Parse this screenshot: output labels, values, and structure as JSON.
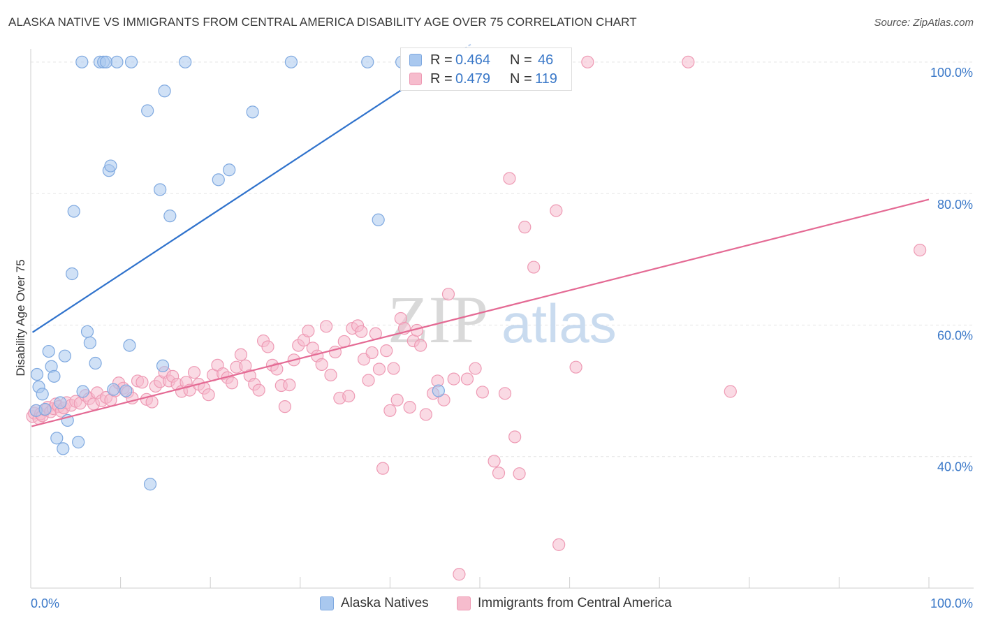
{
  "title": "ALASKA NATIVE VS IMMIGRANTS FROM CENTRAL AMERICA DISABILITY AGE OVER 75 CORRELATION CHART",
  "source": "Source: ZipAtlas.com",
  "watermark": {
    "zip": "ZIP",
    "atlas": "atlas"
  },
  "colors": {
    "blue_fill": "#a9c8ef",
    "blue_stroke": "#7fa9e0",
    "blue_line": "#2f72cc",
    "pink_fill": "#f6bccd",
    "pink_stroke": "#ee9ab4",
    "pink_line": "#e46a94",
    "tick_text": "#3a78c8",
    "grid": "#e3e3e3"
  },
  "stats": [
    {
      "r_label": "R =",
      "r_value": "0.464",
      "n_label": "N =",
      "n_value": "46"
    },
    {
      "r_label": "R =",
      "r_value": "0.479",
      "n_label": "N =",
      "n_value": "119"
    }
  ],
  "chart_data": {
    "type": "scatter",
    "title": "ALASKA NATIVE VS IMMIGRANTS FROM CENTRAL AMERICA DISABILITY AGE OVER 75 CORRELATION CHART",
    "xlabel": "",
    "ylabel": "Disability Age Over 75",
    "xlim": [
      0,
      100
    ],
    "ylim": [
      20,
      102
    ],
    "x_tick_labels": [
      "0.0%",
      "100.0%"
    ],
    "y_ticks": [
      40,
      60,
      80,
      100
    ],
    "y_tick_labels": [
      "40.0%",
      "60.0%",
      "80.0%",
      "100.0%"
    ],
    "grid": true,
    "legend": "bottom-center",
    "series": [
      {
        "name": "Alaska Natives",
        "color": "blue",
        "trend": {
          "x1": 0.2,
          "y1": 58.9,
          "x2": 46,
          "y2": 100
        },
        "points": [
          [
            0.6,
            47.0
          ],
          [
            0.7,
            52.5
          ],
          [
            0.9,
            50.6
          ],
          [
            1.3,
            49.5
          ],
          [
            1.6,
            47.2
          ],
          [
            2.0,
            56.0
          ],
          [
            2.3,
            53.7
          ],
          [
            2.6,
            52.2
          ],
          [
            2.9,
            42.8
          ],
          [
            3.3,
            48.2
          ],
          [
            3.6,
            41.2
          ],
          [
            3.8,
            55.3
          ],
          [
            4.1,
            45.5
          ],
          [
            4.6,
            67.8
          ],
          [
            4.8,
            77.3
          ],
          [
            5.3,
            42.2
          ],
          [
            5.7,
            100
          ],
          [
            5.8,
            49.9
          ],
          [
            6.3,
            59.0
          ],
          [
            6.6,
            57.3
          ],
          [
            7.2,
            54.2
          ],
          [
            7.7,
            100
          ],
          [
            8.1,
            100
          ],
          [
            8.4,
            100
          ],
          [
            8.7,
            83.5
          ],
          [
            8.9,
            84.2
          ],
          [
            9.2,
            50.2
          ],
          [
            9.6,
            100
          ],
          [
            10.6,
            50.0
          ],
          [
            11.0,
            56.9
          ],
          [
            11.2,
            100
          ],
          [
            13.0,
            92.6
          ],
          [
            13.3,
            35.8
          ],
          [
            14.4,
            80.6
          ],
          [
            14.7,
            53.8
          ],
          [
            14.9,
            95.6
          ],
          [
            15.5,
            76.6
          ],
          [
            17.2,
            100
          ],
          [
            20.9,
            82.1
          ],
          [
            22.1,
            83.6
          ],
          [
            24.7,
            92.4
          ],
          [
            29.0,
            100
          ],
          [
            37.5,
            100
          ],
          [
            38.7,
            76.0
          ],
          [
            41.3,
            100
          ],
          [
            45.4,
            50.0
          ]
        ]
      },
      {
        "name": "Immigrants from Central America",
        "color": "pink",
        "trend": {
          "x1": 0.1,
          "y1": 44.6,
          "x2": 100,
          "y2": 79.1
        },
        "points": [
          [
            0.2,
            46.1
          ],
          [
            0.4,
            46.6
          ],
          [
            0.6,
            47.0
          ],
          [
            0.9,
            45.8
          ],
          [
            1.1,
            46.5
          ],
          [
            1.3,
            46.2
          ],
          [
            1.6,
            47.1
          ],
          [
            1.9,
            47.5
          ],
          [
            2.2,
            46.8
          ],
          [
            2.5,
            47.3
          ],
          [
            2.8,
            48.0
          ],
          [
            3.1,
            47.6
          ],
          [
            3.4,
            46.9
          ],
          [
            3.7,
            47.4
          ],
          [
            4.0,
            48.2
          ],
          [
            4.5,
            47.8
          ],
          [
            5.0,
            48.4
          ],
          [
            5.5,
            48.1
          ],
          [
            6.1,
            49.3
          ],
          [
            6.5,
            48.8
          ],
          [
            7.0,
            48.0
          ],
          [
            7.4,
            49.7
          ],
          [
            7.9,
            48.5
          ],
          [
            8.4,
            49.0
          ],
          [
            8.9,
            48.6
          ],
          [
            9.4,
            50.0
          ],
          [
            9.8,
            51.2
          ],
          [
            10.3,
            50.4
          ],
          [
            10.8,
            49.8
          ],
          [
            11.3,
            48.9
          ],
          [
            11.9,
            51.5
          ],
          [
            12.4,
            51.3
          ],
          [
            12.9,
            48.7
          ],
          [
            13.5,
            48.3
          ],
          [
            13.9,
            50.7
          ],
          [
            14.4,
            51.4
          ],
          [
            14.9,
            52.8
          ],
          [
            15.4,
            51.5
          ],
          [
            15.8,
            52.2
          ],
          [
            16.3,
            51.0
          ],
          [
            16.8,
            49.9
          ],
          [
            17.3,
            51.3
          ],
          [
            17.7,
            50.1
          ],
          [
            18.2,
            52.8
          ],
          [
            18.7,
            51.0
          ],
          [
            19.3,
            50.4
          ],
          [
            19.8,
            49.4
          ],
          [
            20.3,
            52.4
          ],
          [
            20.8,
            53.9
          ],
          [
            21.4,
            52.6
          ],
          [
            21.9,
            52.0
          ],
          [
            22.4,
            51.2
          ],
          [
            22.9,
            53.6
          ],
          [
            23.4,
            55.5
          ],
          [
            23.9,
            53.8
          ],
          [
            24.4,
            52.3
          ],
          [
            24.9,
            51.0
          ],
          [
            25.4,
            50.1
          ],
          [
            25.9,
            57.6
          ],
          [
            26.4,
            56.7
          ],
          [
            26.9,
            53.9
          ],
          [
            27.4,
            53.3
          ],
          [
            27.9,
            50.8
          ],
          [
            28.3,
            47.6
          ],
          [
            28.8,
            50.9
          ],
          [
            29.3,
            54.7
          ],
          [
            29.8,
            56.9
          ],
          [
            30.4,
            57.7
          ],
          [
            30.9,
            59.1
          ],
          [
            31.4,
            56.5
          ],
          [
            31.9,
            55.3
          ],
          [
            32.4,
            54.0
          ],
          [
            32.9,
            59.8
          ],
          [
            33.4,
            52.4
          ],
          [
            33.9,
            55.9
          ],
          [
            34.4,
            48.9
          ],
          [
            34.9,
            57.5
          ],
          [
            35.4,
            49.2
          ],
          [
            35.8,
            59.5
          ],
          [
            36.4,
            59.9
          ],
          [
            36.8,
            59.0
          ],
          [
            37.1,
            54.8
          ],
          [
            37.6,
            51.6
          ],
          [
            38.0,
            55.8
          ],
          [
            38.4,
            58.7
          ],
          [
            38.8,
            53.3
          ],
          [
            39.2,
            38.2
          ],
          [
            39.6,
            56.1
          ],
          [
            40.0,
            47.0
          ],
          [
            40.4,
            53.4
          ],
          [
            40.8,
            48.6
          ],
          [
            41.2,
            61.0
          ],
          [
            41.6,
            59.5
          ],
          [
            42.2,
            47.5
          ],
          [
            42.6,
            57.6
          ],
          [
            43.0,
            59.2
          ],
          [
            43.4,
            56.9
          ],
          [
            44.0,
            46.4
          ],
          [
            44.8,
            49.6
          ],
          [
            45.3,
            51.5
          ],
          [
            46.0,
            48.6
          ],
          [
            46.5,
            64.7
          ],
          [
            47.1,
            51.8
          ],
          [
            47.7,
            22.1
          ],
          [
            48.6,
            51.8
          ],
          [
            49.5,
            53.4
          ],
          [
            50.3,
            49.8
          ],
          [
            51.6,
            39.3
          ],
          [
            52.1,
            37.5
          ],
          [
            52.8,
            49.6
          ],
          [
            53.3,
            82.3
          ],
          [
            53.9,
            43.0
          ],
          [
            54.4,
            37.4
          ],
          [
            55.0,
            74.9
          ],
          [
            56.0,
            68.8
          ],
          [
            58.5,
            77.4
          ],
          [
            58.8,
            26.6
          ],
          [
            60.7,
            53.6
          ],
          [
            62.0,
            100
          ],
          [
            73.2,
            100
          ],
          [
            77.9,
            49.9
          ],
          [
            99.0,
            71.4
          ]
        ]
      }
    ]
  },
  "legend_items": [
    {
      "label": "Alaska Natives"
    },
    {
      "label": "Immigrants from Central America"
    }
  ]
}
